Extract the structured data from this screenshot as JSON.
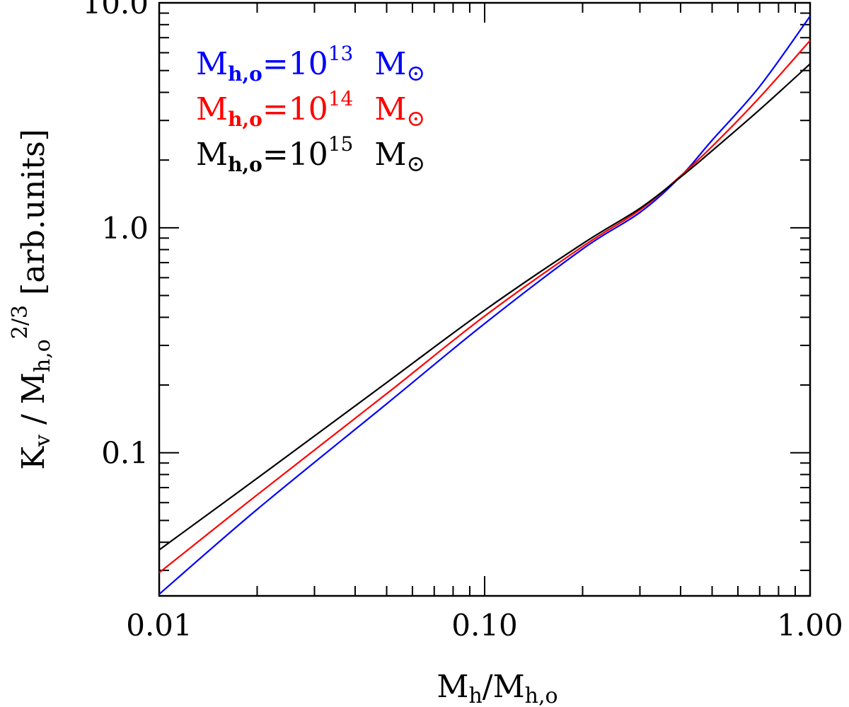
{
  "chart_data": {
    "type": "line",
    "title": "",
    "x_scale": "log",
    "y_scale": "log",
    "xlim": [
      0.01,
      1.0
    ],
    "ylim": [
      0.0231,
      10.0
    ],
    "grid": false,
    "legend_position": "top-left",
    "xlabel": {
      "main": "M",
      "sub1": "h",
      "slash": "/",
      "main2": "M",
      "sub2": "h,o"
    },
    "ylabel": {
      "main": "K",
      "sub1": "v",
      "slash": " / ",
      "main2": "M",
      "sub2": "h,o",
      "sup": "2/3",
      "units": "[arb.units]"
    },
    "x_ticks": [
      {
        "value": 0.01,
        "label": "0.01"
      },
      {
        "value": 0.1,
        "label": "0.10"
      },
      {
        "value": 1.0,
        "label": "1.00"
      }
    ],
    "y_ticks": [
      {
        "value": 0.1,
        "label": "0.1"
      },
      {
        "value": 1.0,
        "label": "1.0"
      },
      {
        "value": 10.0,
        "label": "10.0"
      }
    ],
    "series": [
      {
        "name": "10^13",
        "legend": {
          "main": "M",
          "sub": "h,o",
          "eq": "=10",
          "exp": "13",
          "unit": "M",
          "unit_sym": "⊙"
        },
        "color": "#0000ff",
        "x": [
          0.01,
          0.02,
          0.05,
          0.1,
          0.2,
          0.3,
          0.4,
          0.5,
          0.7,
          1.0
        ],
        "y": [
          0.0235,
          0.056,
          0.165,
          0.375,
          0.805,
          1.17,
          1.69,
          2.45,
          4.25,
          8.72
        ]
      },
      {
        "name": "10^14",
        "legend": {
          "main": "M",
          "sub": "h,o",
          "eq": "=10",
          "exp": "14",
          "unit": "M",
          "unit_sym": "⊙"
        },
        "color": "#ff0000",
        "x": [
          0.01,
          0.02,
          0.05,
          0.1,
          0.2,
          0.3,
          0.4,
          0.5,
          0.7,
          1.0
        ],
        "y": [
          0.0293,
          0.065,
          0.183,
          0.405,
          0.826,
          1.2,
          1.7,
          2.3,
          3.8,
          6.8
        ]
      },
      {
        "name": "10^15",
        "legend": {
          "main": "M",
          "sub": "h,o",
          "eq": "=10",
          "exp": "15",
          "unit": "M",
          "unit_sym": "⊙"
        },
        "color": "#000000",
        "x": [
          0.01,
          0.02,
          0.05,
          0.1,
          0.2,
          0.3,
          0.4,
          0.5,
          0.7,
          1.0
        ],
        "y": [
          0.037,
          0.077,
          0.205,
          0.43,
          0.85,
          1.22,
          1.68,
          2.2,
          3.35,
          5.35
        ]
      }
    ]
  }
}
